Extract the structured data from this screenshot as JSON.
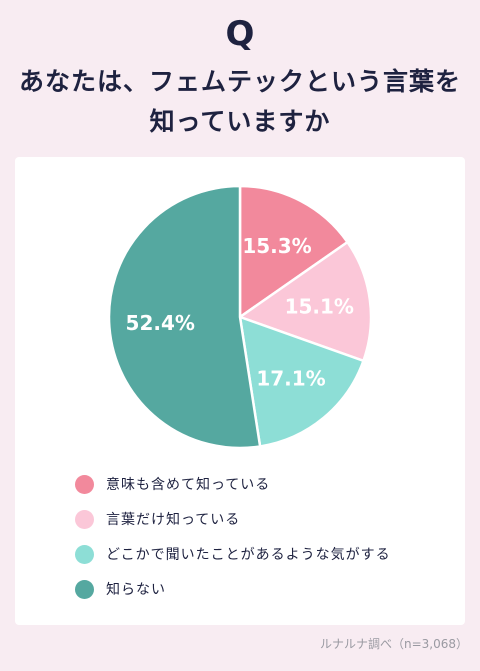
{
  "header": {
    "q_mark": "Q",
    "question_line1": "あなたは、フェムテックという言葉を",
    "question_line2": "知っていますか"
  },
  "chart_data": {
    "type": "pie",
    "title": "",
    "slices": [
      {
        "label": "意味も含めて知っている",
        "value": 15.3,
        "display": "15.3%",
        "color": "#f2899c"
      },
      {
        "label": "言葉だけ知っている",
        "value": 15.1,
        "display": "15.1%",
        "color": "#fbc7d8"
      },
      {
        "label": "どこかで聞いたことがあるような気がする",
        "value": 17.1,
        "display": "17.1%",
        "color": "#8dded6"
      },
      {
        "label": "知らない",
        "value": 52.4,
        "display": "52.4%",
        "color": "#55a8a0"
      }
    ],
    "legend_position": "bottom"
  },
  "footer": {
    "source": "ルナルナ調べ（n=3,068）"
  }
}
